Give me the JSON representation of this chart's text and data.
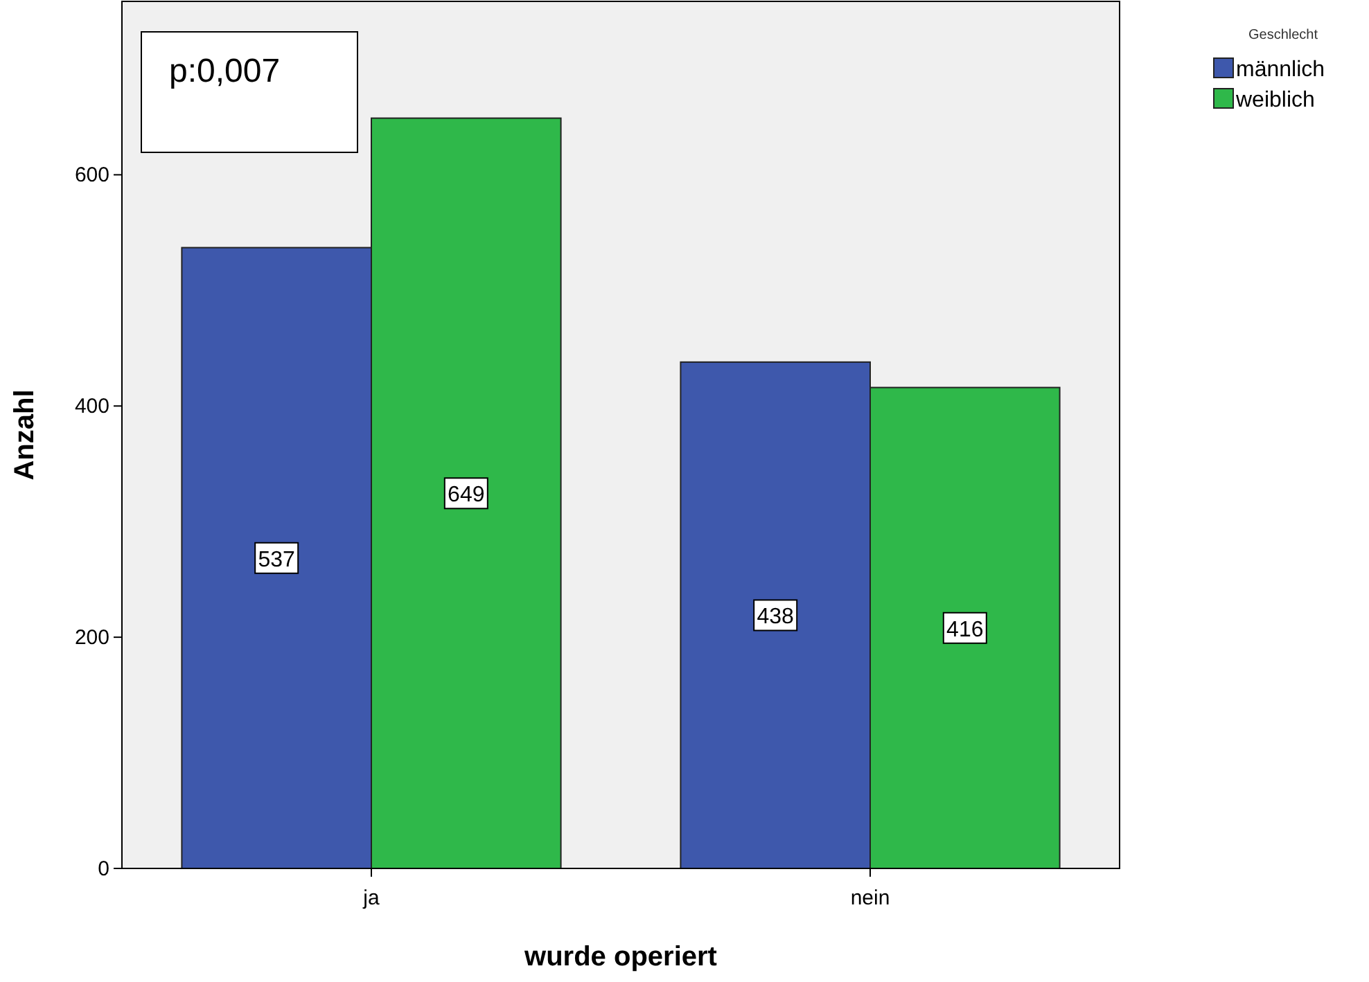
{
  "chart_data": {
    "type": "bar",
    "xlabel": "wurde operiert",
    "ylabel": "Anzahl",
    "legend_title": "Geschlecht",
    "categories": [
      "ja",
      "nein"
    ],
    "series": [
      {
        "name": "männlich",
        "color": "#3e58ac",
        "values": [
          537,
          438
        ]
      },
      {
        "name": "weiblich",
        "color": "#2fb84a",
        "values": [
          649,
          416
        ]
      }
    ],
    "ylim": [
      0,
      750
    ],
    "yticks": [
      0,
      200,
      400,
      600
    ],
    "grid": false,
    "legend": "top right",
    "data_labels": true,
    "annotations": [
      "p:0,007"
    ]
  }
}
